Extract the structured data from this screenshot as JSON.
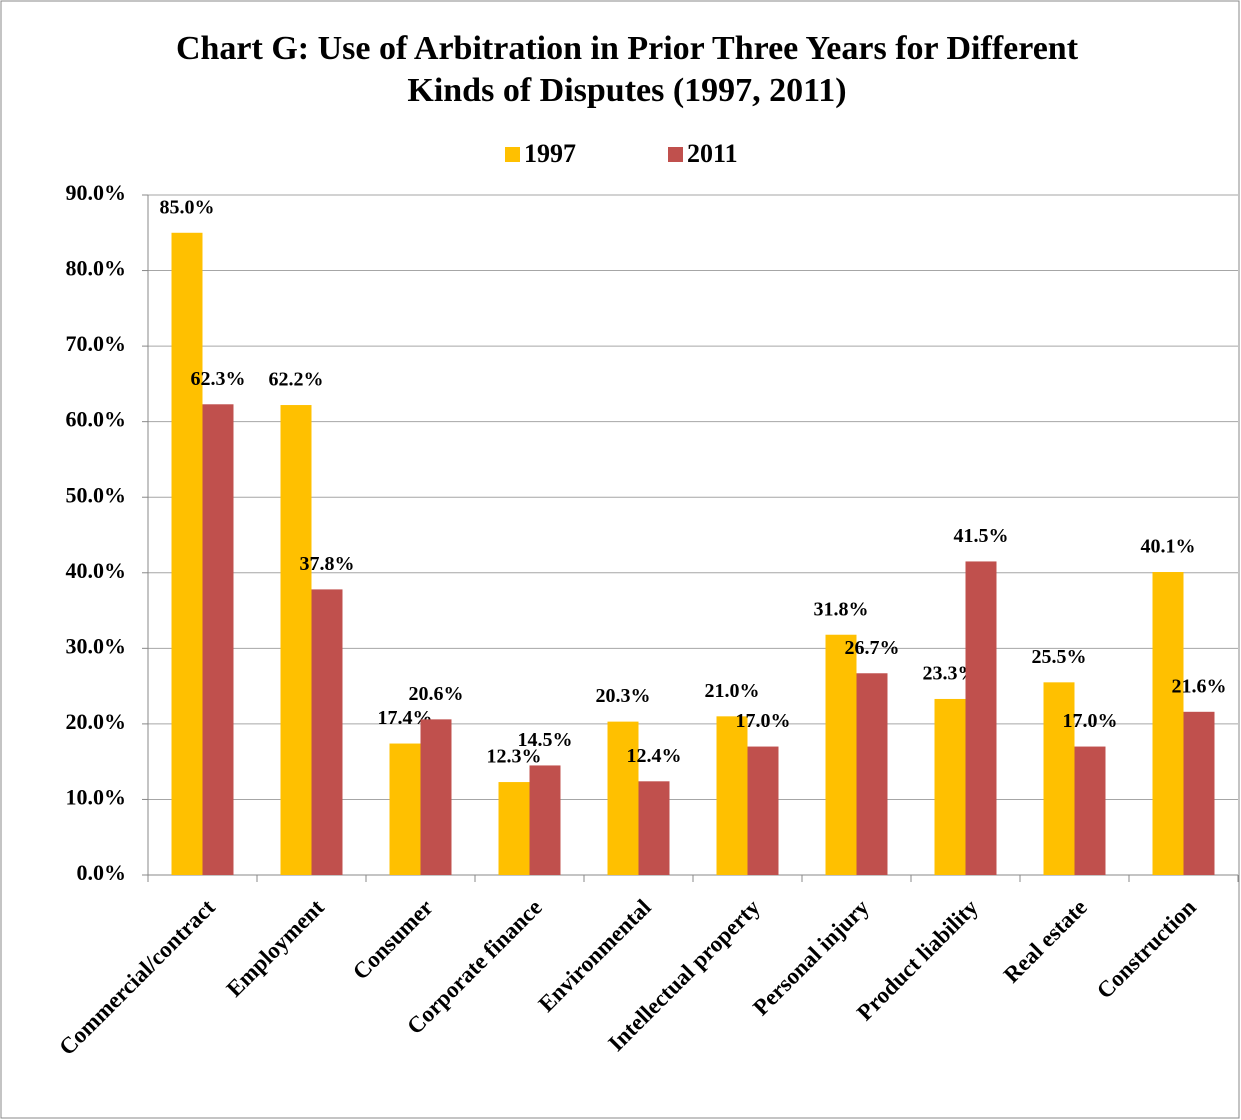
{
  "chart_data": {
    "type": "bar",
    "title": "Chart  G: Use of Arbitration in Prior Three Years for Different Kinds of Disputes (1997, 2011)",
    "categories": [
      "Commercial/contract",
      "Employment",
      "Consumer",
      "Corporate finance",
      "Environmental",
      "Intellectual property",
      "Personal injury",
      "Product liability",
      "Real estate",
      "Construction"
    ],
    "series": [
      {
        "name": "1997",
        "color": "#FFC000",
        "values": [
          85.0,
          62.2,
          17.4,
          12.3,
          20.3,
          21.0,
          31.8,
          23.3,
          25.5,
          40.1
        ],
        "value_labels": [
          "85.0%",
          "62.2%",
          "17.4%",
          "12.3%",
          "20.3%",
          "21.0%",
          "31.8%",
          "23.3%",
          "25.5%",
          "40.1%"
        ]
      },
      {
        "name": "2011",
        "color": "#C0504D",
        "values": [
          62.3,
          37.8,
          20.6,
          14.5,
          12.4,
          17.0,
          26.7,
          41.5,
          17.0,
          21.6
        ],
        "value_labels": [
          "62.3%",
          "37.8%",
          "20.6%",
          "14.5%",
          "12.4%",
          "17.0%",
          "26.7%",
          "41.5%",
          "17.0%",
          "21.6%"
        ]
      }
    ],
    "ylim": [
      0,
      90
    ],
    "yticks": [
      {
        "value": 0,
        "label": "0.0%"
      },
      {
        "value": 10,
        "label": "10.0%"
      },
      {
        "value": 20,
        "label": "20.0%"
      },
      {
        "value": 30,
        "label": "30.0%"
      },
      {
        "value": 40,
        "label": "40.0%"
      },
      {
        "value": 50,
        "label": "50.0%"
      },
      {
        "value": 60,
        "label": "60.0%"
      },
      {
        "value": 70,
        "label": "70.0%"
      },
      {
        "value": 80,
        "label": "80.0%"
      },
      {
        "value": 90,
        "label": "90.0%"
      }
    ],
    "grid": true,
    "legend": "top"
  }
}
